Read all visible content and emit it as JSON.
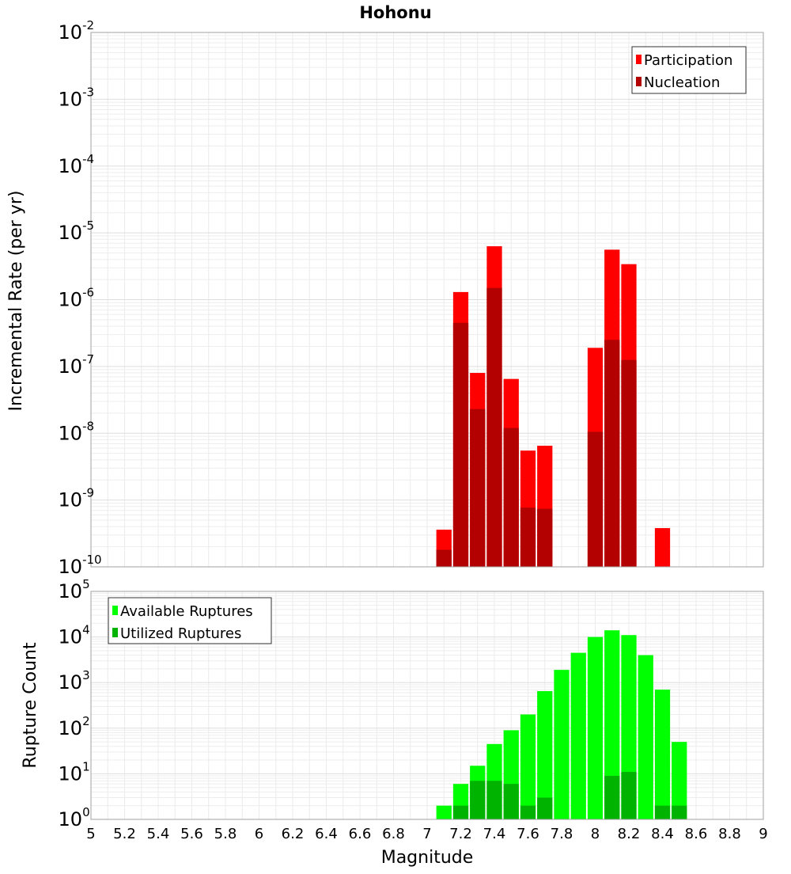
{
  "chart_data": [
    {
      "type": "bar",
      "title": "Hohonu",
      "ylabel": "Incremental Rate (per yr)",
      "xlabel": "",
      "y_scale": "log",
      "ylim_exp": [
        -10,
        -2
      ],
      "y_ticks": [
        {
          "base": "10",
          "exp": "-2"
        },
        {
          "base": "10",
          "exp": "-3"
        },
        {
          "base": "10",
          "exp": "-4"
        },
        {
          "base": "10",
          "exp": "-5"
        },
        {
          "base": "10",
          "exp": "-6"
        },
        {
          "base": "10",
          "exp": "-7"
        },
        {
          "base": "10",
          "exp": "-8"
        },
        {
          "base": "10",
          "exp": "-9"
        },
        {
          "base": "10",
          "exp": "-10"
        }
      ],
      "grid": true,
      "legend_position": "top-right",
      "series": [
        {
          "name": "Participation",
          "color": "#ff0000",
          "points": [
            {
              "x": 7.1,
              "y": 3.6e-10
            },
            {
              "x": 7.2,
              "y": 1.3e-06
            },
            {
              "x": 7.3,
              "y": 8e-08
            },
            {
              "x": 7.4,
              "y": 6.3e-06
            },
            {
              "x": 7.5,
              "y": 6.5e-08
            },
            {
              "x": 7.6,
              "y": 5.5e-09
            },
            {
              "x": 7.7,
              "y": 6.5e-09
            },
            {
              "x": 8.0,
              "y": 1.9e-07
            },
            {
              "x": 8.1,
              "y": 5.6e-06
            },
            {
              "x": 8.2,
              "y": 3.4e-06
            },
            {
              "x": 8.4,
              "y": 3.8e-10
            }
          ]
        },
        {
          "name": "Nucleation",
          "color": "#b30000",
          "points": [
            {
              "x": 7.1,
              "y": 1.8e-10
            },
            {
              "x": 7.2,
              "y": 4.5e-07
            },
            {
              "x": 7.3,
              "y": 2.3e-08
            },
            {
              "x": 7.4,
              "y": 1.5e-06
            },
            {
              "x": 7.5,
              "y": 1.2e-08
            },
            {
              "x": 7.6,
              "y": 7.7e-10
            },
            {
              "x": 7.7,
              "y": 7.4e-10
            },
            {
              "x": 8.0,
              "y": 1.05e-08
            },
            {
              "x": 8.1,
              "y": 2.5e-07
            },
            {
              "x": 8.2,
              "y": 1.25e-07
            }
          ]
        }
      ]
    },
    {
      "type": "bar",
      "ylabel": "Rupture Count",
      "xlabel": "Magnitude",
      "xlim": [
        5,
        9
      ],
      "x_ticks": [
        "5",
        "5.2",
        "5.4",
        "5.6",
        "5.8",
        "6",
        "6.2",
        "6.4",
        "6.6",
        "6.8",
        "7",
        "7.2",
        "7.4",
        "7.6",
        "7.8",
        "8",
        "8.2",
        "8.4",
        "8.6",
        "8.8",
        "9"
      ],
      "y_scale": "log",
      "ylim_exp": [
        0,
        5
      ],
      "y_ticks": [
        {
          "base": "10",
          "exp": "5"
        },
        {
          "base": "10",
          "exp": "4"
        },
        {
          "base": "10",
          "exp": "3"
        },
        {
          "base": "10",
          "exp": "2"
        },
        {
          "base": "10",
          "exp": "1"
        },
        {
          "base": "10",
          "exp": "0"
        }
      ],
      "grid": true,
      "legend_position": "top-left",
      "series": [
        {
          "name": "Available Ruptures",
          "color": "#00ff00",
          "points": [
            {
              "x": 6.8,
              "y": 1
            },
            {
              "x": 7.1,
              "y": 2
            },
            {
              "x": 7.2,
              "y": 6
            },
            {
              "x": 7.3,
              "y": 15
            },
            {
              "x": 7.4,
              "y": 45
            },
            {
              "x": 7.5,
              "y": 90
            },
            {
              "x": 7.6,
              "y": 200
            },
            {
              "x": 7.7,
              "y": 650
            },
            {
              "x": 7.8,
              "y": 1900
            },
            {
              "x": 7.9,
              "y": 4500
            },
            {
              "x": 8.0,
              "y": 10000
            },
            {
              "x": 8.1,
              "y": 14000
            },
            {
              "x": 8.2,
              "y": 11000
            },
            {
              "x": 8.3,
              "y": 4000
            },
            {
              "x": 8.4,
              "y": 700
            },
            {
              "x": 8.5,
              "y": 50
            }
          ]
        },
        {
          "name": "Utilized Ruptures",
          "color": "#00b300",
          "points": [
            {
              "x": 7.1,
              "y": 1
            },
            {
              "x": 7.2,
              "y": 2
            },
            {
              "x": 7.3,
              "y": 7
            },
            {
              "x": 7.4,
              "y": 7
            },
            {
              "x": 7.5,
              "y": 6
            },
            {
              "x": 7.6,
              "y": 2
            },
            {
              "x": 7.7,
              "y": 3
            },
            {
              "x": 8.0,
              "y": 1
            },
            {
              "x": 8.1,
              "y": 9
            },
            {
              "x": 8.2,
              "y": 11
            },
            {
              "x": 8.4,
              "y": 2
            },
            {
              "x": 8.5,
              "y": 2
            }
          ]
        }
      ]
    }
  ]
}
